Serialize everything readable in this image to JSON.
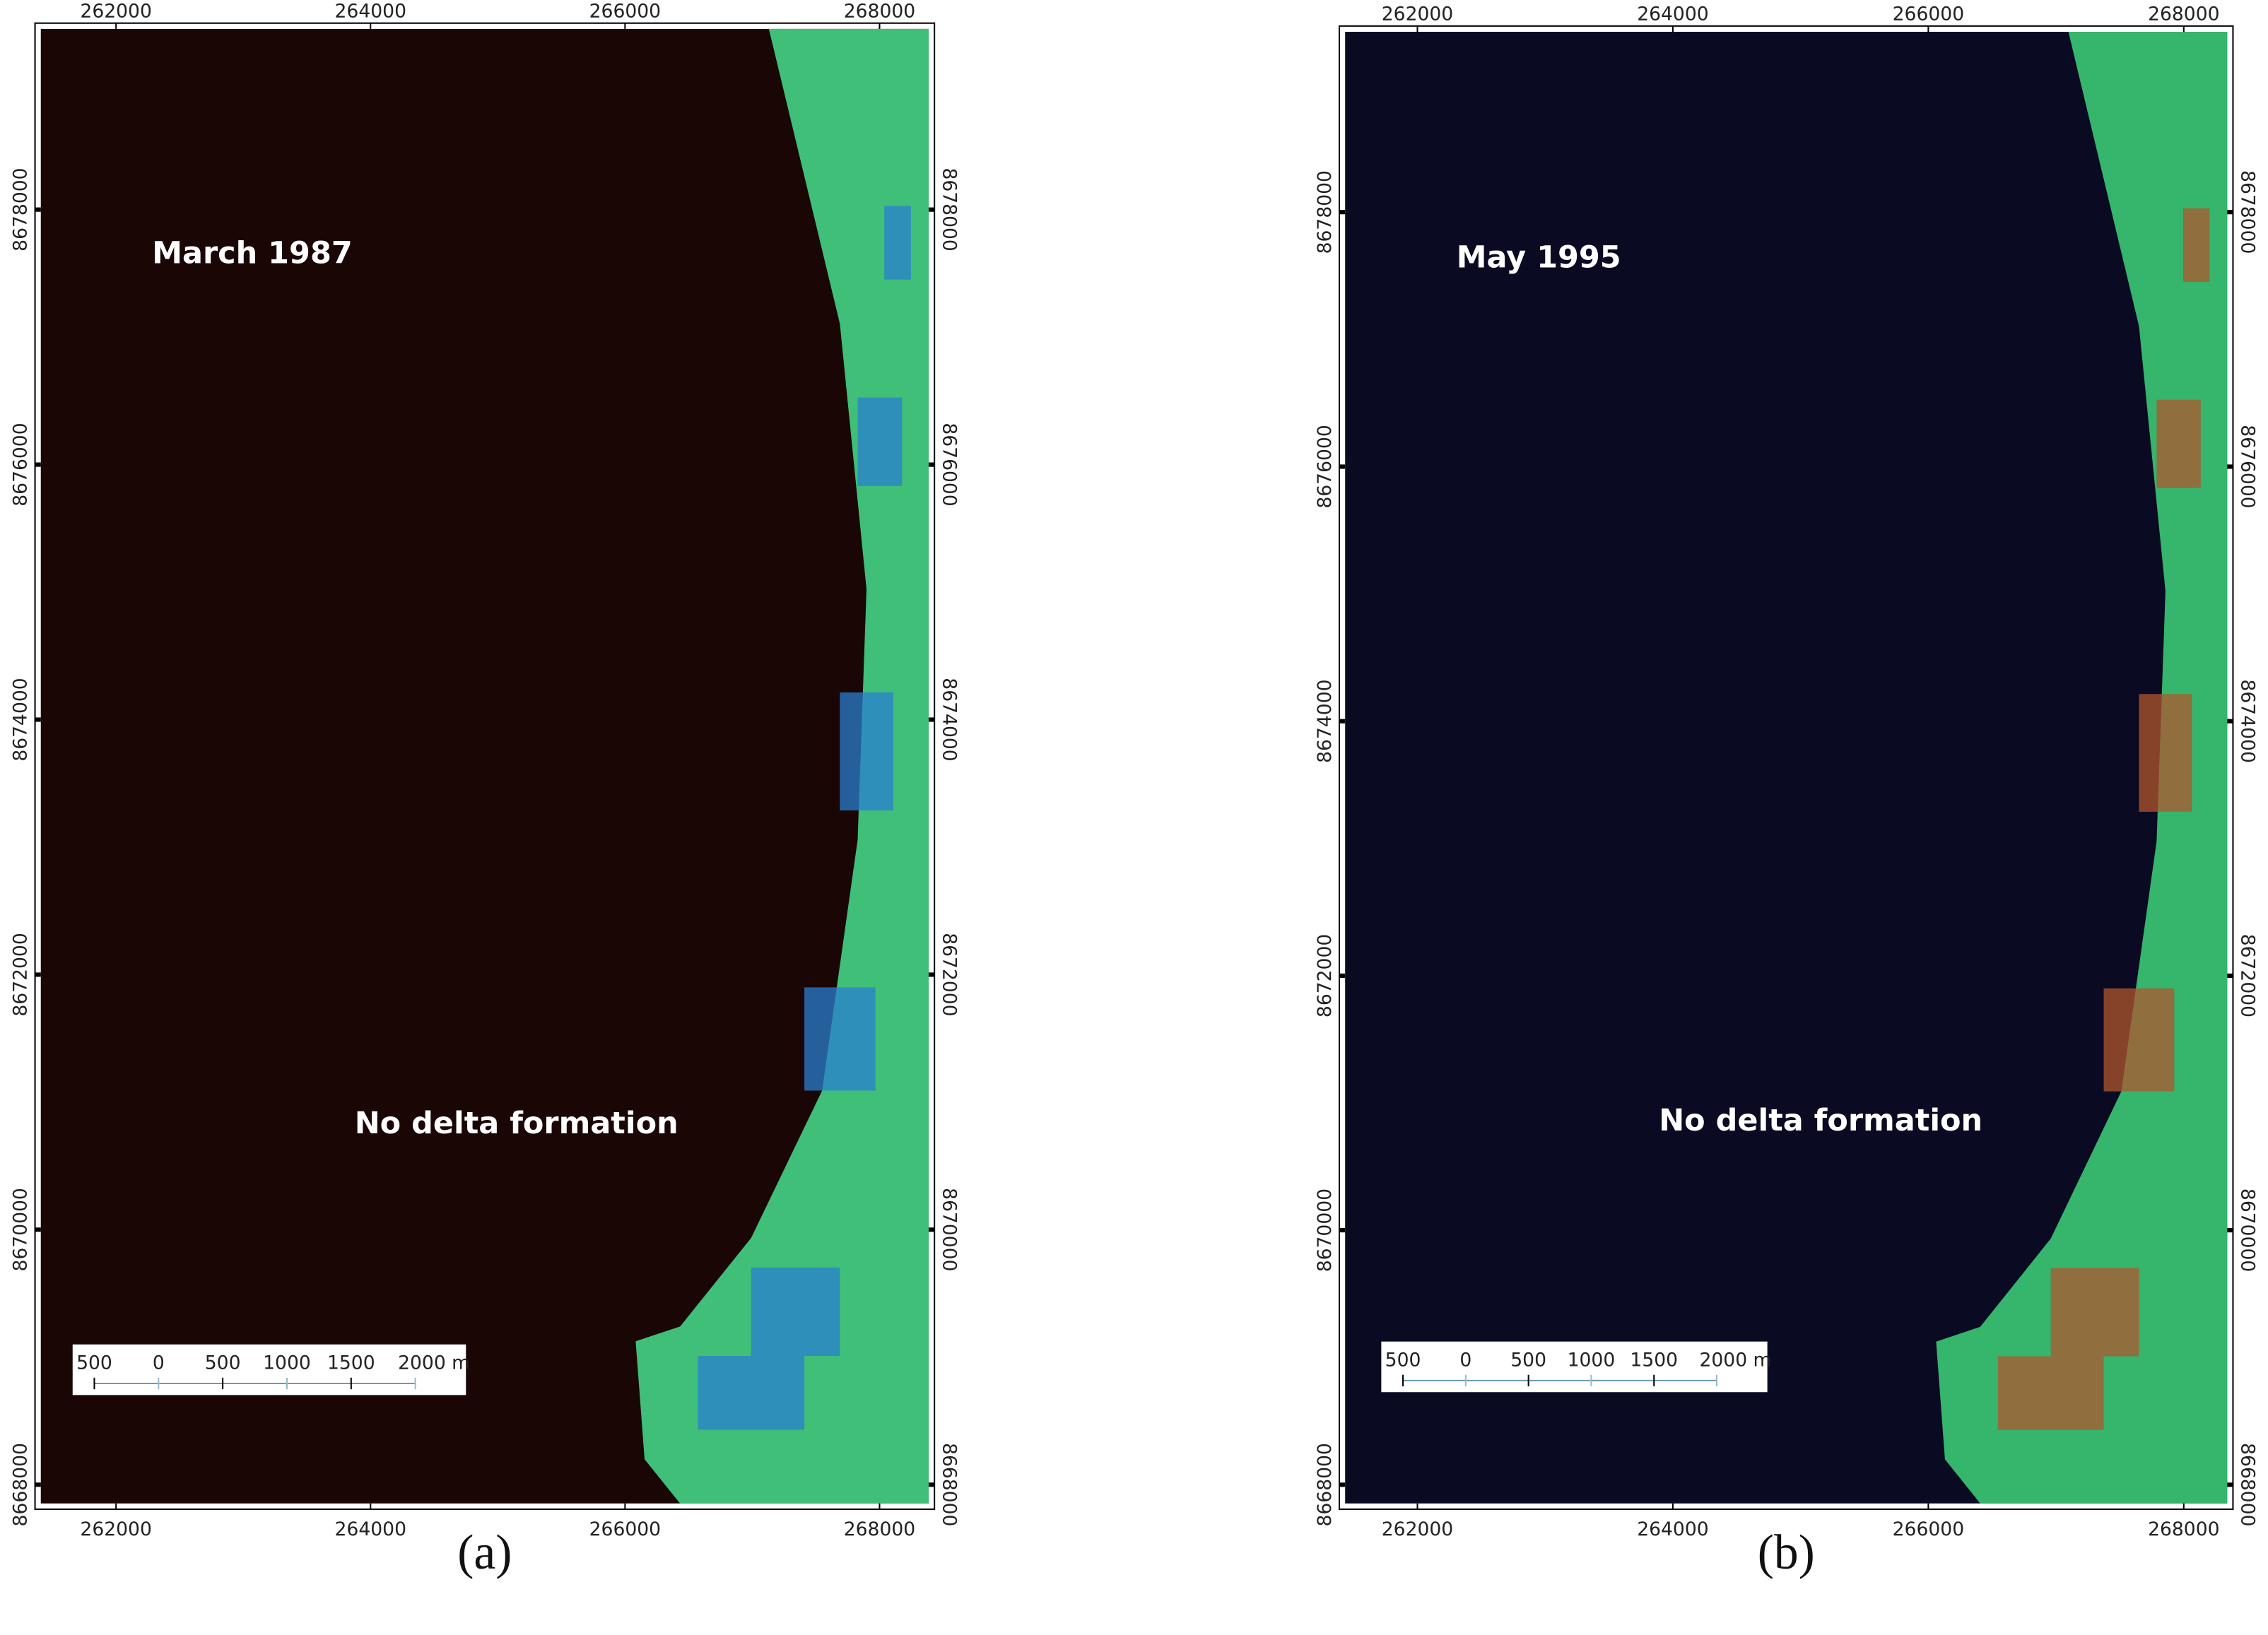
{
  "panels": [
    {
      "label": "March 1987",
      "annotation": "No delta formation",
      "caption": "(a)",
      "xticks": [
        262000,
        264000,
        266000,
        268000
      ],
      "yticks": [
        8668000,
        8670000,
        8672000,
        8674000,
        8676000,
        8678000
      ],
      "xlim": [
        261409,
        268386
      ],
      "ylim": [
        8667853,
        8679417
      ],
      "scale_bar": [
        "500",
        "0",
        "500",
        "1000",
        "1500",
        "2000 m"
      ]
    },
    {
      "label": "May 1995",
      "annotation": "No delta formation",
      "caption": "(b)",
      "xticks": [
        262000,
        264000,
        266000,
        268000
      ],
      "yticks": [
        8668000,
        8670000,
        8672000,
        8674000,
        8676000,
        8678000
      ],
      "xlim": [
        261434,
        268340
      ],
      "ylim": [
        8667853,
        8679417
      ],
      "scale_bar": [
        "500",
        "0",
        "500",
        "1000",
        "1500",
        "2000 m"
      ]
    }
  ]
}
